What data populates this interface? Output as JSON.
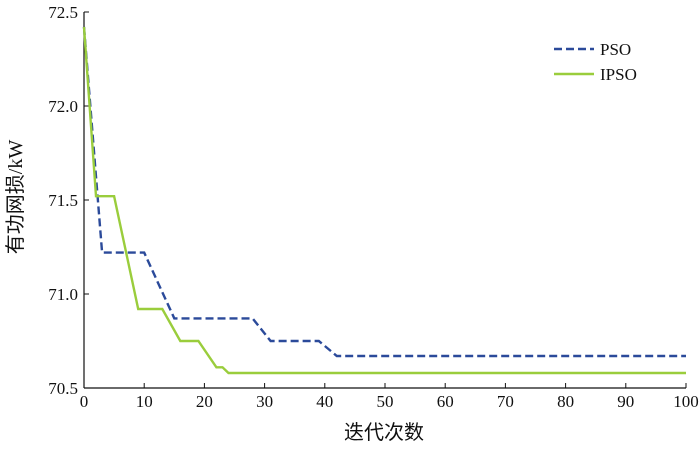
{
  "chart_data": {
    "type": "line",
    "title": "",
    "xlabel": "迭代次数",
    "ylabel": "有功网损/kW",
    "xlim": [
      0,
      100
    ],
    "ylim": [
      70.5,
      72.5
    ],
    "xticks": [
      0,
      10,
      20,
      30,
      40,
      50,
      60,
      70,
      80,
      90,
      100
    ],
    "xtick_labels": [
      "0",
      "10",
      "20",
      "30",
      "40",
      "50",
      "60",
      "70",
      "80",
      "90",
      "100"
    ],
    "yticks": [
      70.5,
      71.0,
      71.5,
      72.0,
      72.5
    ],
    "ytick_labels": [
      "70.5",
      "71.0",
      "71.5",
      "72.0",
      "72.5"
    ],
    "grid": false,
    "legend_position": "top-right",
    "series": [
      {
        "name": "PSO",
        "color": "#2b4a9a",
        "line_style": "dashed",
        "x": [
          0,
          3,
          10,
          15,
          28,
          31,
          39,
          42,
          100
        ],
        "y": [
          72.42,
          71.22,
          71.22,
          70.87,
          70.87,
          70.75,
          70.75,
          70.67,
          70.67
        ]
      },
      {
        "name": "IPSO",
        "color": "#9acd3c",
        "line_style": "solid",
        "x": [
          0,
          2,
          5,
          9,
          13,
          16,
          19,
          22,
          23,
          24,
          100
        ],
        "y": [
          72.42,
          71.52,
          71.52,
          70.92,
          70.92,
          70.75,
          70.75,
          70.61,
          70.61,
          70.58,
          70.58
        ]
      }
    ]
  }
}
